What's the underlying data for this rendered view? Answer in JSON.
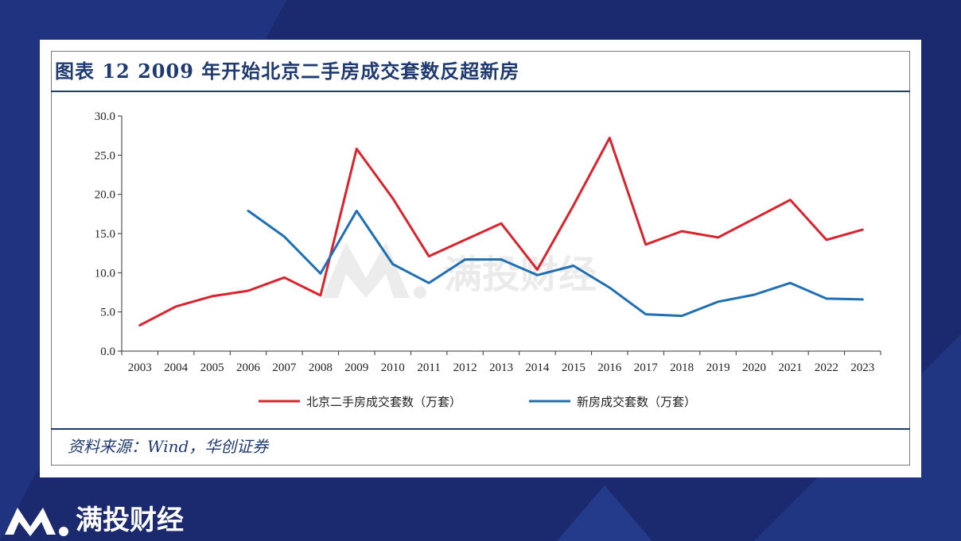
{
  "title": "图表 12  2009 年开始北京二手房成交套数反超新房",
  "source": "资料来源：Wind，华创证券",
  "watermark": "满投财经",
  "brand": {
    "name": "满投财经"
  },
  "colors": {
    "series_secondhand": "#d9232d",
    "series_new": "#1f6fb4",
    "navy": "#1f3a70",
    "background": "#1b2a6e"
  },
  "chart_data": {
    "type": "line",
    "title": "",
    "xlabel": "",
    "ylabel": "",
    "categories": [
      "2003",
      "2004",
      "2005",
      "2006",
      "2007",
      "2008",
      "2009",
      "2010",
      "2011",
      "2012",
      "2013",
      "2014",
      "2015",
      "2016",
      "2017",
      "2018",
      "2019",
      "2020",
      "2021",
      "2022",
      "2023"
    ],
    "ylim": [
      0,
      30
    ],
    "yticks": [
      "0.0",
      "5.0",
      "10.0",
      "15.0",
      "20.0",
      "25.0",
      "30.0"
    ],
    "grid": false,
    "legend_position": "bottom",
    "series": [
      {
        "name": "北京二手房成交套数（万套）",
        "color": "#d9232d",
        "values": [
          3.3,
          5.7,
          7.0,
          7.7,
          9.4,
          7.1,
          25.8,
          19.5,
          12.1,
          14.2,
          16.3,
          10.4,
          18.6,
          27.2,
          13.6,
          15.3,
          14.5,
          16.9,
          19.3,
          14.2,
          15.5
        ]
      },
      {
        "name": "新房成交套数（万套）",
        "color": "#1f6fb4",
        "values": [
          null,
          null,
          null,
          17.9,
          14.6,
          9.9,
          17.9,
          11.1,
          8.7,
          11.7,
          11.7,
          9.7,
          10.9,
          8.1,
          4.7,
          4.5,
          6.3,
          7.2,
          8.7,
          6.7,
          6.6
        ]
      }
    ]
  }
}
